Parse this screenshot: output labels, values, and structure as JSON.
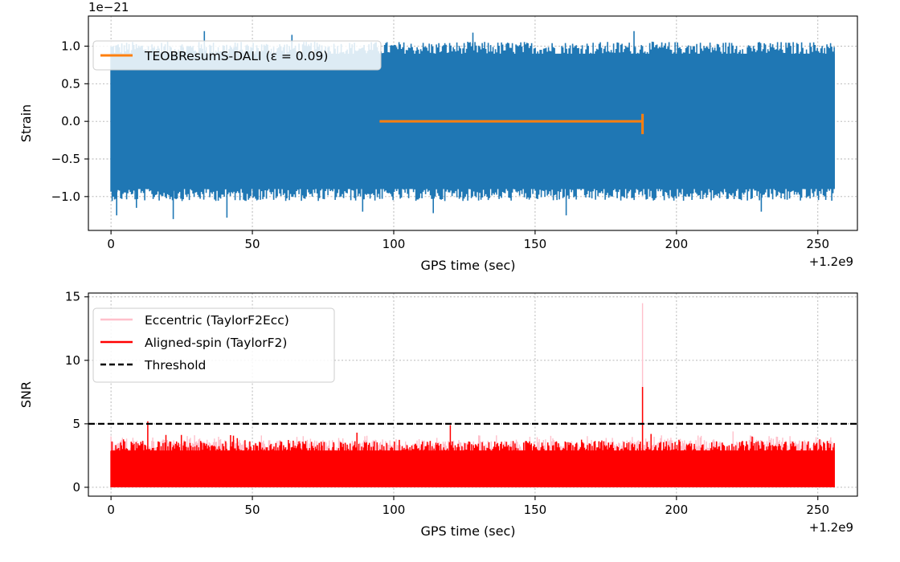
{
  "chart_data": [
    {
      "type": "line",
      "xlabel": "GPS time (sec)",
      "ylabel": "Strain",
      "x_offset_label": "+1.2e9",
      "y_multiplier_label": "1e−21",
      "xlim": [
        -8,
        264
      ],
      "ylim": [
        -1.45,
        1.4
      ],
      "xticks": [
        0,
        50,
        100,
        150,
        200,
        250
      ],
      "xtick_labels": [
        "0",
        "50",
        "100",
        "150",
        "200",
        "250"
      ],
      "yticks": [
        -1.0,
        -0.5,
        0.0,
        0.5,
        1.0
      ],
      "ytick_labels": [
        "−1.0",
        "−0.5",
        "0.0",
        "0.5",
        "1.0"
      ],
      "grid": true,
      "legend_location": "upper-left",
      "series": [
        {
          "name": "",
          "color": "#1f77b4",
          "kind": "noise",
          "x_range": [
            0,
            256
          ],
          "typical_envelope": [
            -0.9,
            0.9
          ],
          "spikes": [
            {
              "x": 2,
              "y": -1.25
            },
            {
              "x": 9,
              "y": -1.15
            },
            {
              "x": 22,
              "y": -1.3
            },
            {
              "x": 33,
              "y": 1.2
            },
            {
              "x": 41,
              "y": -1.28
            },
            {
              "x": 64,
              "y": 1.15
            },
            {
              "x": 89,
              "y": -1.2
            },
            {
              "x": 114,
              "y": -1.22
            },
            {
              "x": 128,
              "y": 1.18
            },
            {
              "x": 161,
              "y": -1.25
            },
            {
              "x": 185,
              "y": 1.2
            },
            {
              "x": 230,
              "y": -1.2
            }
          ]
        },
        {
          "name": "TEOBResumS-DALI (ε = 0.09)",
          "color": "#ff7f0e",
          "kind": "signal",
          "x": [
            95,
            188
          ],
          "y": [
            0.0,
            0.0
          ],
          "end_spike": [
            -0.17,
            0.1
          ]
        }
      ]
    },
    {
      "type": "line",
      "xlabel": "GPS time (sec)",
      "ylabel": "SNR",
      "x_offset_label": "+1.2e9",
      "xlim": [
        -8,
        264
      ],
      "ylim": [
        -0.7,
        15.3
      ],
      "xticks": [
        0,
        50,
        100,
        150,
        200,
        250
      ],
      "xtick_labels": [
        "0",
        "50",
        "100",
        "150",
        "200",
        "250"
      ],
      "yticks": [
        0,
        5,
        10,
        15
      ],
      "ytick_labels": [
        "0",
        "5",
        "10",
        "15"
      ],
      "grid": true,
      "legend_location": "upper-left",
      "series": [
        {
          "name": "Eccentric (TaylorF2Ecc)",
          "color": "#ffc0cb",
          "kind": "noise",
          "x_range": [
            0,
            256
          ],
          "typical_max": 3.6,
          "spikes": [
            {
              "x": 188,
              "y": 14.5
            },
            {
              "x": 220,
              "y": 4.4
            },
            {
              "x": 13,
              "y": 4.8
            }
          ]
        },
        {
          "name": "Aligned-spin (TaylorF2)",
          "color": "#ff0000",
          "kind": "noise",
          "x_range": [
            0,
            256
          ],
          "typical_max": 3.3,
          "spikes": [
            {
              "x": 13,
              "y": 5.2
            },
            {
              "x": 87,
              "y": 4.3
            },
            {
              "x": 120,
              "y": 4.9
            },
            {
              "x": 188,
              "y": 7.9
            },
            {
              "x": 191,
              "y": 4.2
            }
          ]
        },
        {
          "name": "Threshold",
          "color": "#000000",
          "kind": "hline",
          "y": 5
        }
      ]
    }
  ]
}
